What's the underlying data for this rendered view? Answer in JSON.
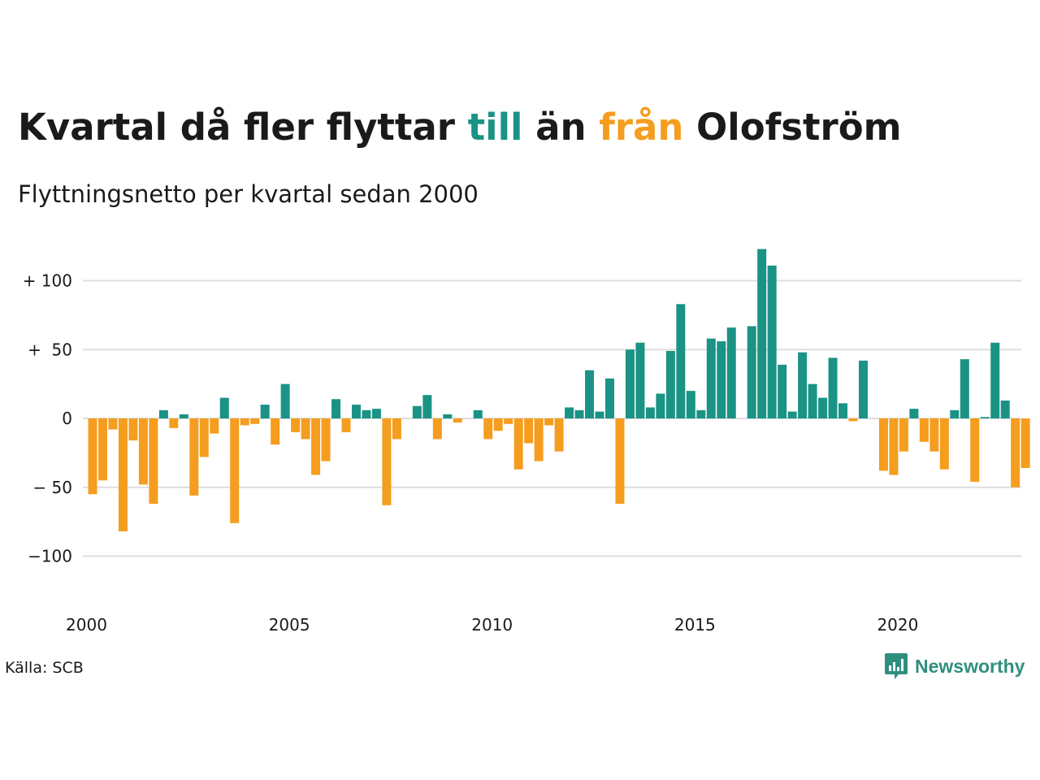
{
  "title": {
    "part1": "Kvartal då fler flyttar ",
    "part2": "till",
    "part3": " än ",
    "part4": "från",
    "part5": " Olofström"
  },
  "subtitle": "Flyttningsnetto per kvartal sedan 2000",
  "source": "Källa: SCB",
  "brand": "Newsworthy",
  "colors": {
    "positive": "#1a9385",
    "negative": "#f59d1e",
    "grid": "#dddddd"
  },
  "chart_data": {
    "type": "bar",
    "title": "Kvartal då fler flyttar till än från Olofström",
    "subtitle": "Flyttningsnetto per kvartal sedan 2000",
    "x_start_year": 2000,
    "quarters_per_year": 4,
    "x_tick_labels": [
      "2000",
      "2005",
      "2010",
      "2015",
      "2020"
    ],
    "y_ticks": [
      100,
      50,
      0,
      -50,
      -100
    ],
    "y_tick_labels": [
      "+ 100",
      "+  50",
      "0",
      "− 50",
      "−100"
    ],
    "ylim": [
      -120,
      130
    ],
    "grid": true,
    "values": [
      -55,
      -45,
      -8,
      -82,
      -16,
      -48,
      -62,
      6,
      -7,
      3,
      -56,
      -28,
      -11,
      15,
      -76,
      -5,
      -4,
      10,
      -19,
      25,
      -10,
      -15,
      -41,
      -31,
      14,
      -10,
      10,
      6,
      7,
      -63,
      -15,
      0,
      9,
      17,
      -15,
      3,
      -3,
      0,
      6,
      -15,
      -9,
      -4,
      -37,
      -18,
      -31,
      -5,
      -24,
      8,
      6,
      35,
      5,
      29,
      -62,
      50,
      55,
      8,
      18,
      49,
      83,
      20,
      6,
      58,
      56,
      66,
      0,
      67,
      123,
      111,
      39,
      5,
      48,
      25,
      15,
      44,
      11,
      -2,
      42,
      0,
      -38,
      -41,
      -24,
      7,
      -17,
      -24,
      -37,
      6,
      43,
      -46,
      1,
      55,
      13,
      -50,
      -36
    ]
  }
}
